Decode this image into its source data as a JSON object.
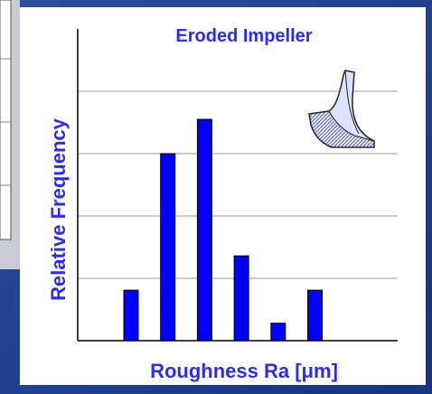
{
  "chart_data": {
    "type": "bar",
    "title": "Eroded Impeller",
    "x_label": "Roughness Ra [μm]",
    "y_label": "Relative Frequency",
    "categories": [
      null,
      null,
      null,
      null,
      null,
      null
    ],
    "values": [
      0.81,
      3.0,
      3.55,
      1.36,
      0.28,
      0.81
    ],
    "color": "#0000ff",
    "ylim": [
      0,
      5
    ],
    "yticks": [
      1,
      2,
      3,
      4
    ],
    "grid": true
  }
}
